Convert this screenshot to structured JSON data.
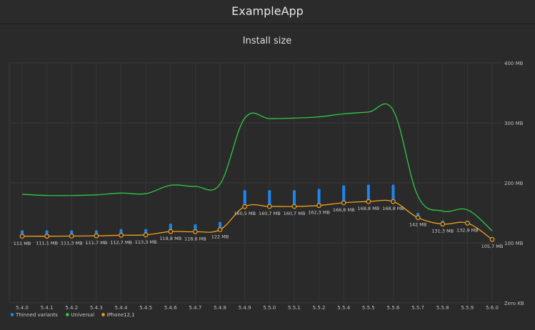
{
  "window": {
    "app_title": "ExampleApp"
  },
  "chart_data": {
    "type": "line",
    "title": "Install size",
    "categories": [
      "5.4.0",
      "5.4.1",
      "5.4.2",
      "5.4.3",
      "5.4.4",
      "5.4.5",
      "5.4.6",
      "5.4.7",
      "5.4.8",
      "5.4.9",
      "5.5.0",
      "5.5.1",
      "5.5.2",
      "5.5.4",
      "5.5.5",
      "5.5.6",
      "5.5.7",
      "5.5.8",
      "5.5.9",
      "5.6.0"
    ],
    "y_ticks": [
      {
        "value": 400,
        "label": "400 MB"
      },
      {
        "value": 300,
        "label": "300 MB"
      },
      {
        "value": 200,
        "label": "200 MB"
      },
      {
        "value": 100,
        "label": "100 MB"
      },
      {
        "value": 0,
        "label": "Zero KB"
      }
    ],
    "ylim": [
      0,
      400
    ],
    "grid": true,
    "legend_position": "bottom-left",
    "series": [
      {
        "name": "Thinned variants",
        "kind": "range-bar",
        "color": "#1e86f0",
        "low": [
          111,
          111.1,
          111.3,
          111.7,
          112.7,
          113.3,
          118.8,
          118.6,
          122,
          160.5,
          160.7,
          160.7,
          162.3,
          166.8,
          168.8,
          168.8,
          142,
          131.3,
          132.9,
          105.7
        ],
        "high": [
          121,
          121,
          121,
          121,
          123,
          123,
          132,
          131,
          135,
          188,
          188,
          188,
          190,
          196,
          197,
          197,
          150,
          137,
          137,
          108
        ]
      },
      {
        "name": "Universal",
        "kind": "line",
        "color": "#2fc943",
        "values": [
          181,
          179,
          179,
          180,
          183,
          182,
          196,
          194,
          198,
          308,
          307,
          308,
          310,
          315,
          318,
          321,
          178,
          153,
          155,
          120
        ]
      },
      {
        "name": "iPhone12,1",
        "kind": "line",
        "color": "#f0a020",
        "values": [
          111,
          111.1,
          111.3,
          111.7,
          112.7,
          113.3,
          118.8,
          118.6,
          122,
          160.5,
          160.7,
          160.7,
          162.3,
          166.8,
          168.8,
          168.8,
          142,
          131.3,
          132.9,
          105.7
        ],
        "labels": [
          "111 MB",
          "111,1 MB",
          "111,3 MB",
          "111,7 MB",
          "112,7 MB",
          "113,3 MB",
          "118,8 MB",
          "118,6 MB",
          "122 MB",
          "160,5 MB",
          "160,7 MB",
          "160,7 MB",
          "162,3 MB",
          "166,8 MB",
          "168,8 MB",
          "168,8 MB",
          "142 MB",
          "131,3 MB",
          "132,9 MB",
          "105,7 MB"
        ]
      }
    ]
  }
}
